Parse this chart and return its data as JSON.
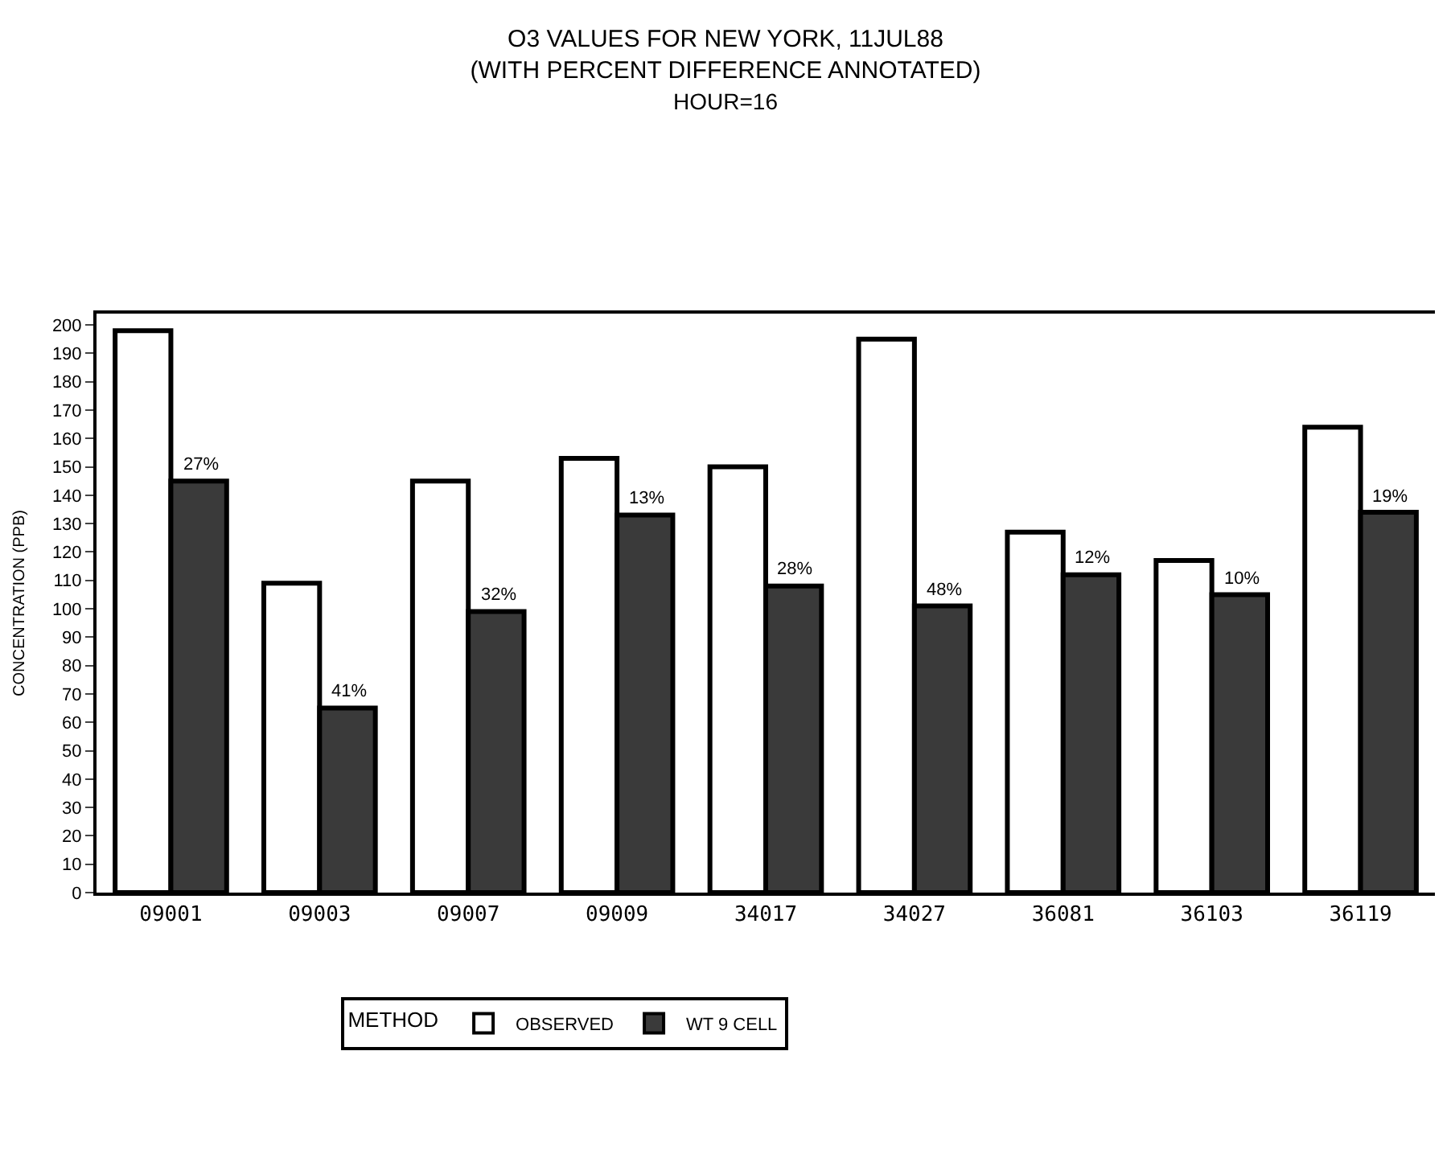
{
  "chart_data": {
    "type": "bar",
    "title": "O3 VALUES FOR NEW YORK, 11JUL88\n(WITH PERCENT DIFFERENCE ANNOTATED)",
    "subtitle": "HOUR=16",
    "ylabel": "CONCENTRATION (PPB)",
    "legend_title": "METHOD",
    "categories": [
      "09001",
      "09003",
      "09007",
      "09009",
      "34017",
      "34027",
      "36081",
      "36103",
      "36119"
    ],
    "series": [
      {
        "name": "OBSERVED",
        "color": "#ffffff",
        "values": [
          198,
          109,
          145,
          153,
          150,
          195,
          127,
          117,
          164
        ]
      },
      {
        "name": "WT 9 CELL",
        "color": "#3a3a3a",
        "values": [
          145,
          65,
          99,
          133,
          108,
          101,
          112,
          105,
          134
        ]
      }
    ],
    "annotations": [
      {
        "text": "27%",
        "x": "09001",
        "y": 145
      },
      {
        "text": "41%",
        "x": "09003",
        "y": 65
      },
      {
        "text": "32%",
        "x": "09007",
        "y": 99
      },
      {
        "text": "13%",
        "x": "09009",
        "y": 133
      },
      {
        "text": "28%",
        "x": "34017",
        "y": 108
      },
      {
        "text": "48%",
        "x": "34027",
        "y": 101
      },
      {
        "text": "12%",
        "x": "36081",
        "y": 112
      },
      {
        "text": "10%",
        "x": "36103",
        "y": 105
      },
      {
        "text": "19%",
        "x": "36119",
        "y": 134
      }
    ],
    "ylim": [
      0,
      204
    ],
    "yticks": [
      0,
      10,
      20,
      30,
      40,
      50,
      60,
      70,
      80,
      90,
      100,
      110,
      120,
      130,
      140,
      150,
      160,
      170,
      180,
      190,
      200
    ],
    "legend": "bottom"
  }
}
